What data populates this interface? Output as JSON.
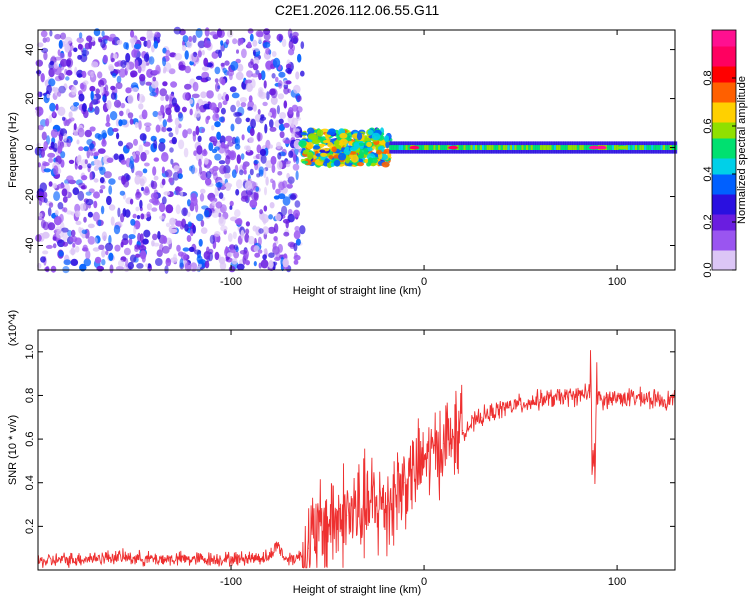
{
  "title": "C2E1.2026.112.06.55.G11",
  "chart_data": [
    {
      "type": "heatmap",
      "xlabel": "Height of straight line (km)",
      "ylabel": "Frequency (Hz)",
      "xlim": [
        -200,
        130
      ],
      "ylim": [
        -50,
        48
      ],
      "xticks": [
        -100,
        0,
        100
      ],
      "yticks": [
        -40,
        -20,
        0,
        20,
        40
      ],
      "colorbar": {
        "label": "Normalized spectral amplitude",
        "range": [
          0,
          1
        ],
        "ticks": [
          0.0,
          0.2,
          0.4,
          0.6,
          0.8
        ],
        "colors": [
          "#ffffff",
          "#dcc6f6",
          "#9a55f0",
          "#6a1de0",
          "#2a10e0",
          "#0060ff",
          "#00d0e8",
          "#00e070",
          "#90e000",
          "#ffd000",
          "#ff6000",
          "#ff0000",
          "#ff0060",
          "#ff1090"
        ]
      },
      "regions": [
        {
          "x_from": -200,
          "x_to": -63,
          "freq_from": -50,
          "freq_to": 48,
          "amplitude": "low (0.1-0.3), broadband"
        },
        {
          "x_from": -63,
          "x_to": -18,
          "freq_center": 0,
          "amplitude": "0.3-0.8, narrowing band"
        },
        {
          "x_from": -18,
          "x_to": 130,
          "freq_center": 0,
          "amplitude": "0.4-1.0, narrow band"
        }
      ]
    },
    {
      "type": "line",
      "xlabel": "Height of straight line (km)",
      "ylabel": "SNR (10 * v/v)",
      "yunit_multiplier": "(x10^4)",
      "xlim": [
        -200,
        130
      ],
      "ylim": [
        0,
        1.1
      ],
      "xticks": [
        -100,
        0,
        100
      ],
      "yticks": [
        0.2,
        0.4,
        0.6,
        0.8,
        1.0
      ],
      "color": "#ee3030",
      "series": [
        {
          "x": [
            -200,
            -180,
            -160,
            -140,
            -120,
            -100,
            -80,
            -76,
            -72,
            -65,
            -60,
            -50,
            -40,
            -30,
            -20,
            -10,
            0,
            10,
            20,
            30,
            40,
            50,
            60,
            70,
            80,
            86,
            88,
            90,
            92,
            100,
            110,
            120,
            130
          ],
          "values": [
            0.04,
            0.05,
            0.06,
            0.05,
            0.05,
            0.05,
            0.06,
            0.12,
            0.05,
            0.06,
            0.1,
            0.22,
            0.25,
            0.28,
            0.3,
            0.4,
            0.5,
            0.58,
            0.64,
            0.7,
            0.74,
            0.76,
            0.78,
            0.79,
            0.8,
            0.82,
            0.5,
            0.8,
            0.78,
            0.79,
            0.79,
            0.78,
            0.78
          ]
        }
      ]
    }
  ]
}
